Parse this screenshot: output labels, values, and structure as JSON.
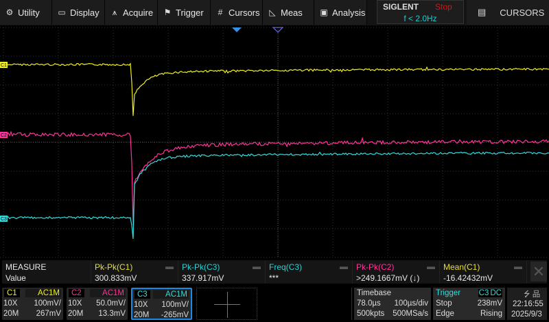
{
  "menu": [
    {
      "label": "Utility",
      "icon": "gear-icon",
      "glyph": "⚙"
    },
    {
      "label": "Display",
      "icon": "monitor-icon",
      "glyph": "▭"
    },
    {
      "label": "Acquire",
      "icon": "acquire-icon",
      "glyph": "⩚"
    },
    {
      "label": "Trigger",
      "icon": "flag-icon",
      "glyph": "⚑"
    },
    {
      "label": "Cursors",
      "icon": "cursors-icon",
      "glyph": "#"
    },
    {
      "label": "Meas",
      "icon": "ruler-triangle-icon",
      "glyph": "◺"
    },
    {
      "label": "Analysis",
      "icon": "analysis-icon",
      "glyph": "▣"
    }
  ],
  "brand": {
    "logo": "SIGLENT",
    "status": "Stop",
    "freq": "f < 2.0Hz"
  },
  "cursors_button": {
    "label": "CURSORS",
    "icon": "list-icon"
  },
  "colors": {
    "c1": "#f0f020",
    "c2": "#ff3399",
    "c3": "#33dddd",
    "accent": "#1e88e5"
  },
  "channels_markers": [
    "C1",
    "C2",
    "C3"
  ],
  "measure": {
    "title": "MEASURE",
    "row_label": "Value",
    "items": [
      {
        "name": "Pk-Pk(C1)",
        "value": "300.833mV",
        "color": "#e8e030"
      },
      {
        "name": "Pk-Pk(C3)",
        "value": "337.917mV",
        "color": "#30d0d0"
      },
      {
        "name": "Freq(C3)",
        "value": "***",
        "color": "#30d0d0"
      },
      {
        "name": "Pk-Pk(C2)",
        "value": ">249.1667mV (↓)",
        "color": "#ff3399"
      },
      {
        "name": "Mean(C1)",
        "value": "-16.42432mV",
        "color": "#e8e030"
      }
    ]
  },
  "channels": [
    {
      "name": "C1",
      "coupling": "AC1M",
      "probe": "10X",
      "scale": "100mV/",
      "bw": "20M",
      "offset": "267mV",
      "color": "#f0f020"
    },
    {
      "name": "C2",
      "coupling": "AC1M",
      "probe": "10X",
      "scale": "50.0mV/",
      "bw": "20M",
      "offset": "13.3mV",
      "color": "#ff3399"
    },
    {
      "name": "C3",
      "coupling": "AC1M",
      "probe": "10X",
      "scale": "100mV/",
      "bw": "20M",
      "offset": "-265mV",
      "color": "#33dddd"
    }
  ],
  "timebase": {
    "title": "Timebase",
    "delay": "78.0µs",
    "scale": "100µs/div",
    "depth": "500kpts",
    "rate": "500MSa/s"
  },
  "trigger": {
    "title": "Trigger",
    "source": "C3",
    "coupling": "DC",
    "state": "Stop",
    "level": "238mV",
    "type": "Edge",
    "slope": "Rising"
  },
  "status": {
    "time": "22:16:55",
    "date": "2025/9/3",
    "icons": [
      "usb-icon",
      "network-icon"
    ]
  }
}
